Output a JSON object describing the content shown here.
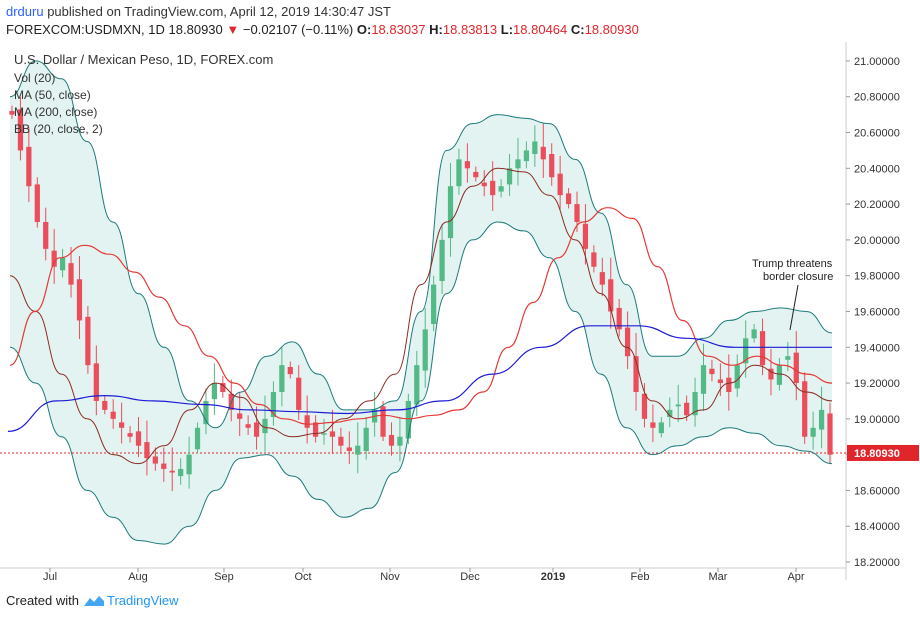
{
  "header": {
    "author": "drduru",
    "published_text": "published on TradingView.com, April 12, 2019 14:30:47 JST",
    "symbol": "FOREXCOM:USDMXN, 1D",
    "price": "18.80930",
    "change": "−0.02107 (−0.11%)",
    "open_label": "O:",
    "open": "18.83037",
    "high_label": "H:",
    "high": "18.83813",
    "low_label": "L:",
    "low": "18.80464",
    "close_label": "C:",
    "close": "18.80930"
  },
  "legend": {
    "title": "U.S. Dollar / Mexican Peso, 1D, FOREX.com",
    "items": [
      "Vol (20)",
      "MA (50, close)",
      "MA (200, close)",
      "BB (20, close, 2)"
    ]
  },
  "annotation": {
    "line1": "Trump threatens",
    "line2": "border closure"
  },
  "footer": {
    "created_with": "Created with",
    "brand": "TradingView"
  },
  "colors": {
    "up": "#53b987",
    "down": "#eb4d5c",
    "ma50": "#e53935",
    "ma200": "#1c1cd6",
    "bb_mid": "#8b2b20",
    "bb_band": "#1e7b7b",
    "bb_fill": "#e3f3f1",
    "last_price": "#e0252b"
  },
  "chart_data": {
    "type": "line",
    "ylim": [
      18.2,
      21.05
    ],
    "y_ticks": [
      "21.00000",
      "20.80000",
      "20.60000",
      "20.40000",
      "20.20000",
      "20.00000",
      "19.80000",
      "19.60000",
      "19.40000",
      "19.20000",
      "19.00000",
      "18.80000",
      "18.60000",
      "18.40000",
      "18.20000"
    ],
    "x_ticks": [
      "Jul",
      "Aug",
      "Sep",
      "Oct",
      "Nov",
      "Dec",
      "2019",
      "Feb",
      "Mar",
      "Apr"
    ],
    "last_price_label": "18.80930",
    "series": [
      {
        "name": "MA (50, close)",
        "values": [
          19.3,
          19.6,
          19.9,
          19.97,
          19.92,
          19.82,
          19.68,
          19.52,
          19.35,
          19.2,
          19.08,
          19.0,
          18.97,
          18.98,
          19.0,
          19.02,
          19.0,
          19.02,
          19.05,
          19.15,
          19.4,
          19.65,
          19.9,
          20.1,
          20.18,
          20.12,
          19.85,
          19.55,
          19.35,
          19.3,
          19.35,
          19.3,
          19.25,
          19.2
        ]
      },
      {
        "name": "MA (200, close)",
        "values": [
          18.93,
          19.1,
          19.13,
          19.1,
          19.08,
          19.05,
          19.04,
          19.03,
          19.05,
          19.1,
          19.25,
          19.4,
          19.52,
          19.52,
          19.45,
          19.4,
          19.4,
          19.4
        ]
      },
      {
        "name": "BB (20, close, 2) basis",
        "values": [
          19.8,
          19.6,
          19.25,
          19.0,
          18.8,
          18.75,
          18.85,
          19.05,
          19.2,
          19.12,
          18.95,
          18.9,
          18.92,
          19.0,
          19.1,
          19.25,
          19.75,
          20.1,
          20.3,
          20.4,
          20.38,
          20.25,
          20.0,
          19.7,
          19.4,
          19.1,
          19.0,
          19.05,
          19.2,
          19.3,
          19.25,
          19.15,
          19.1
        ]
      },
      {
        "name": "BB (20, close, 2) upper",
        "values": [
          20.8,
          21.0,
          20.9,
          20.55,
          20.1,
          19.7,
          19.4,
          19.1,
          18.95,
          19.15,
          19.35,
          19.43,
          19.25,
          19.05,
          19.05,
          19.1,
          19.6,
          20.5,
          20.65,
          20.7,
          20.68,
          20.65,
          20.45,
          20.15,
          19.75,
          19.35,
          19.35,
          19.45,
          19.55,
          19.6,
          19.62,
          19.6,
          19.48
        ]
      },
      {
        "name": "BB (20, close, 2) lower",
        "values": [
          19.4,
          19.2,
          18.9,
          18.6,
          18.45,
          18.32,
          18.3,
          18.4,
          18.6,
          18.78,
          18.8,
          18.68,
          18.55,
          18.45,
          18.5,
          18.7,
          19.1,
          19.7,
          20.0,
          20.1,
          20.05,
          19.9,
          19.6,
          19.25,
          18.95,
          18.8,
          18.85,
          18.9,
          18.95,
          18.92,
          18.85,
          18.82,
          18.75
        ]
      }
    ],
    "candles_close": [
      20.7,
      20.5,
      20.3,
      20.1,
      19.95,
      19.85,
      19.9,
      19.75,
      19.55,
      19.3,
      19.1,
      19.05,
      19.0,
      18.95,
      18.9,
      18.85,
      18.78,
      18.75,
      18.72,
      18.7,
      18.72,
      18.8,
      18.95,
      19.1,
      19.2,
      19.15,
      19.05,
      19.0,
      18.95,
      18.9,
      19.0,
      19.15,
      19.3,
      19.25,
      19.05,
      18.95,
      18.9,
      18.92,
      18.9,
      18.85,
      18.82,
      18.85,
      18.95,
      19.05,
      18.9,
      18.85,
      18.9,
      19.1,
      19.3,
      19.5,
      19.75,
      20.0,
      20.3,
      20.45,
      20.4,
      20.35,
      20.3,
      20.25,
      20.3,
      20.4,
      20.45,
      20.5,
      20.55,
      20.45,
      20.35,
      20.25,
      20.2,
      20.1,
      19.95,
      19.85,
      19.75,
      19.6,
      19.5,
      19.35,
      19.15,
      19.0,
      18.95,
      18.98,
      19.05,
      19.08,
      19.02,
      19.15,
      19.3,
      19.25,
      19.2,
      19.15,
      19.3,
      19.45,
      19.5,
      19.3,
      19.22,
      19.3,
      19.35,
      19.2,
      18.9,
      18.95,
      19.05,
      18.8
    ]
  }
}
